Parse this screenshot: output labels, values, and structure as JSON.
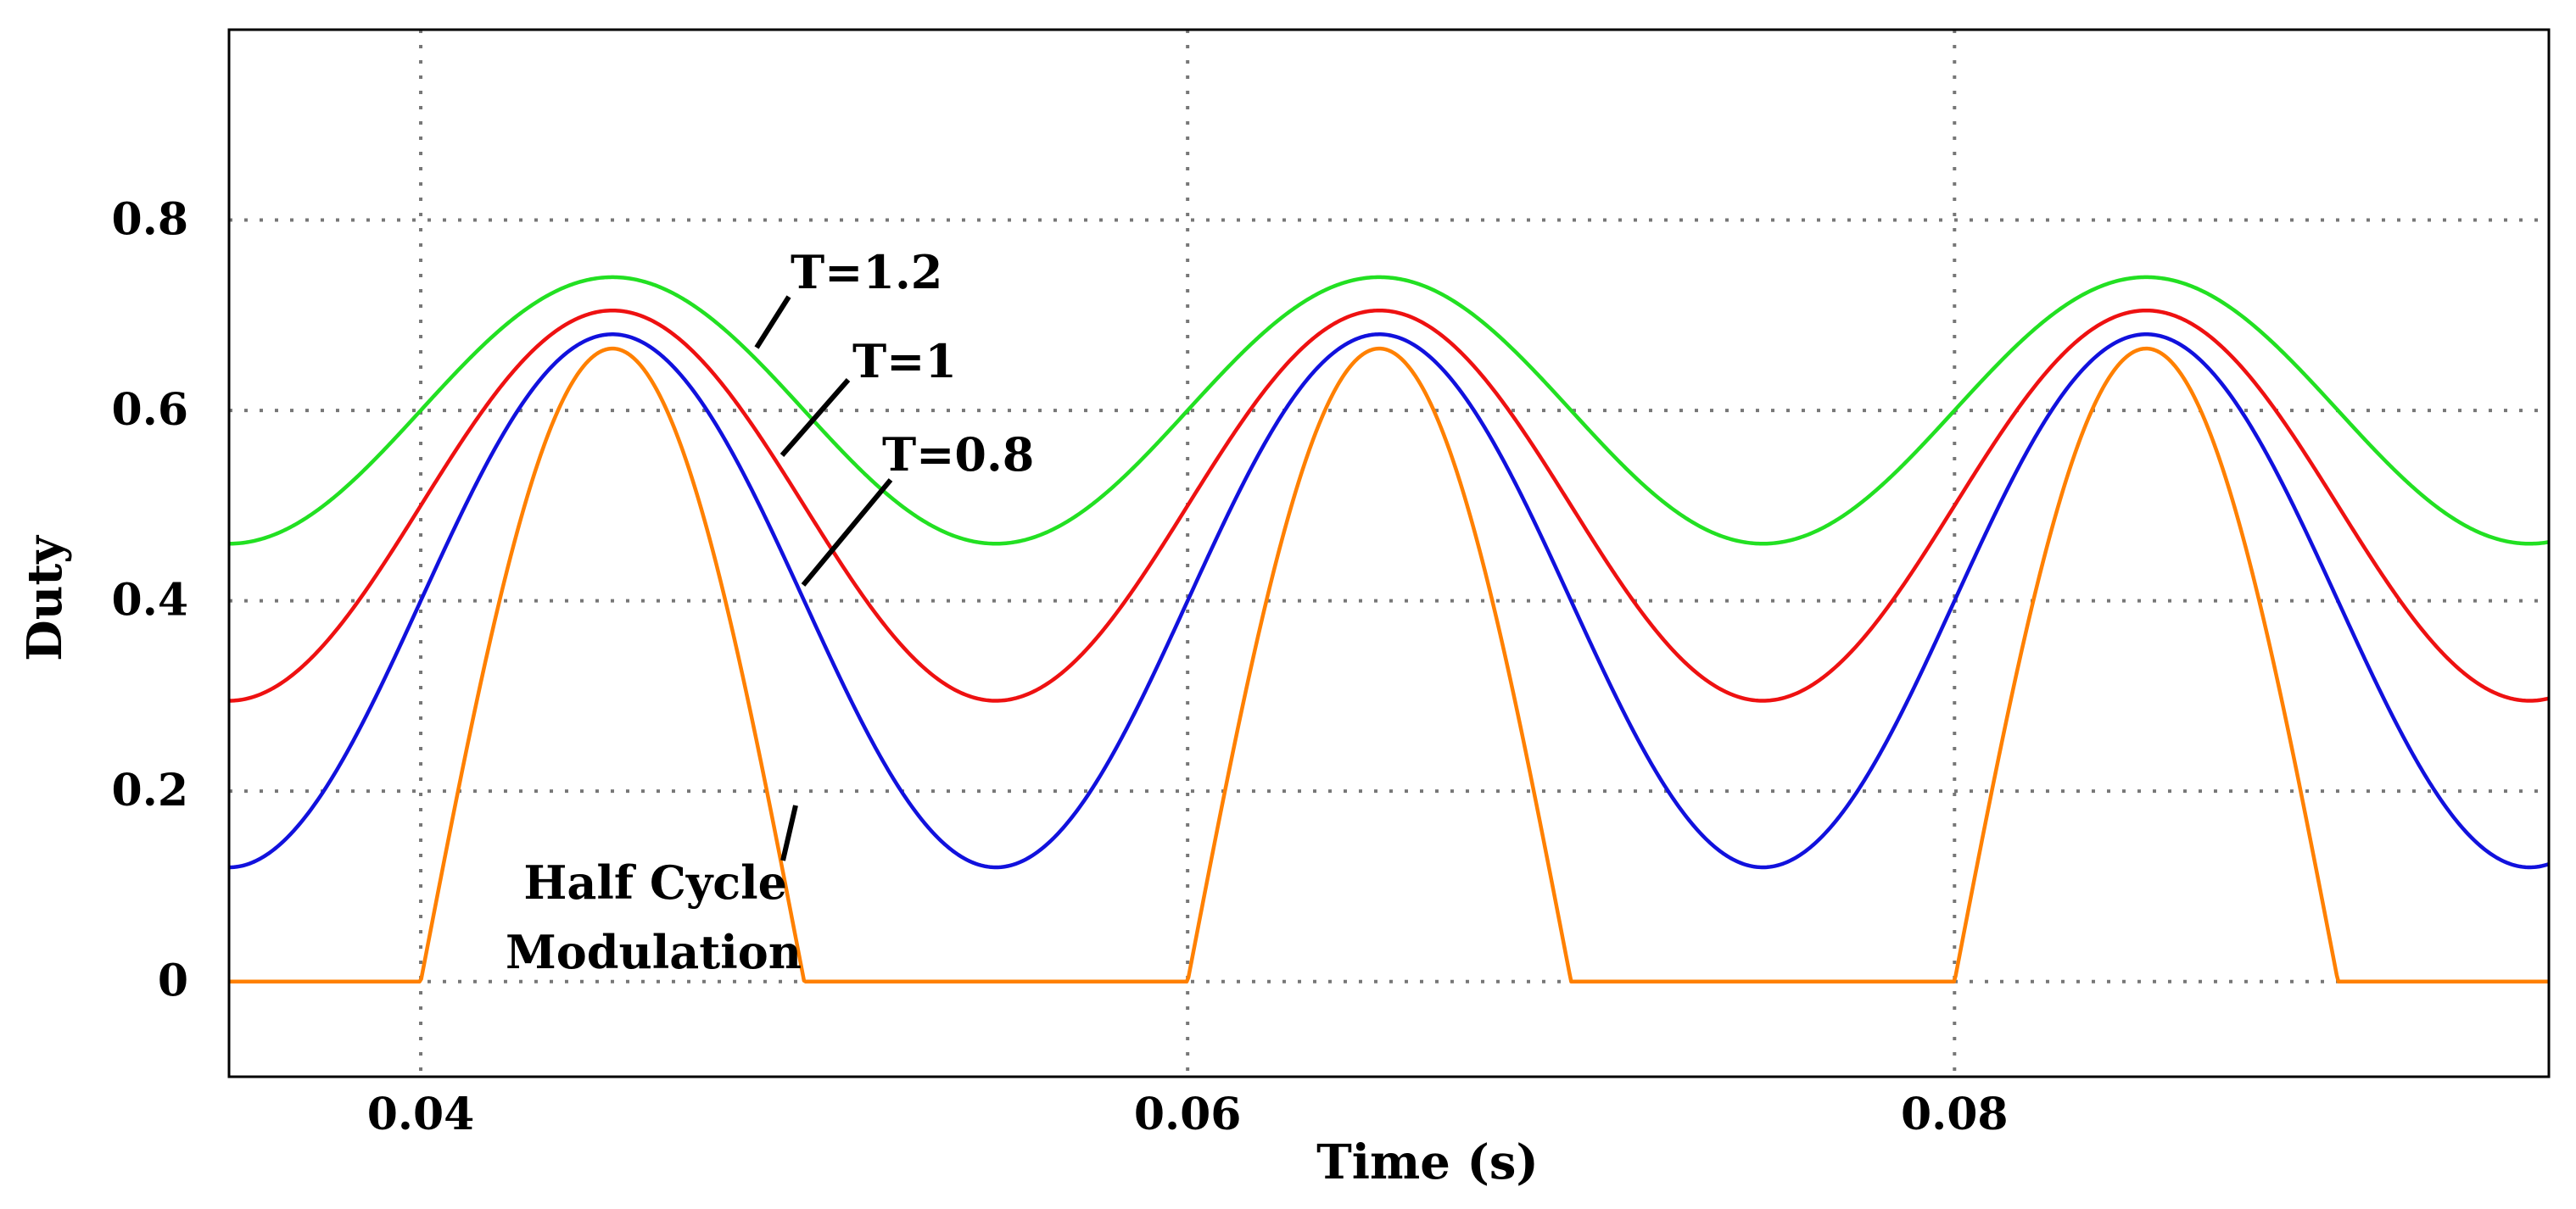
{
  "chart_data": {
    "type": "line",
    "title": "",
    "xlabel": "Time (s)",
    "ylabel": "Duty",
    "xlim": [
      0.035,
      0.0955
    ],
    "ylim": [
      -0.1,
      1.0
    ],
    "xticks": [
      0.04,
      0.06,
      0.08
    ],
    "xtick_labels": [
      "0.04",
      "0.06",
      "0.08"
    ],
    "yticks": [
      0,
      0.2,
      0.4,
      0.6,
      0.8
    ],
    "ytick_labels": [
      "0",
      "0.2",
      "0.4",
      "0.6",
      "0.8"
    ],
    "grid": "dotted",
    "period_s": 0.02,
    "series": [
      {
        "name": "T=1.2",
        "color": "#22e022",
        "min": 0.46,
        "max": 0.74,
        "shape": "sinusoid"
      },
      {
        "name": "T=1",
        "color": "#ee1111",
        "min": 0.295,
        "max": 0.705,
        "shape": "sinusoid"
      },
      {
        "name": "T=0.8",
        "color": "#1111dd",
        "min": 0.12,
        "max": 0.68,
        "shape": "sinusoid"
      },
      {
        "name": "Half Cycle Modulation",
        "color": "#ff8000",
        "peak": 0.665,
        "on_intervals": [
          [
            0.04,
            0.05
          ],
          [
            0.06,
            0.07
          ],
          [
            0.08,
            0.09
          ]
        ],
        "shape": "half-sine"
      }
    ],
    "annotations": [
      {
        "text": "T=1.2",
        "series": "T=1.2"
      },
      {
        "text": "T=1",
        "series": "T=1"
      },
      {
        "text": "T=0.8",
        "series": "T=0.8"
      },
      {
        "lines": [
          "Half Cycle",
          "Modulation"
        ],
        "series": "Half Cycle Modulation"
      }
    ]
  }
}
